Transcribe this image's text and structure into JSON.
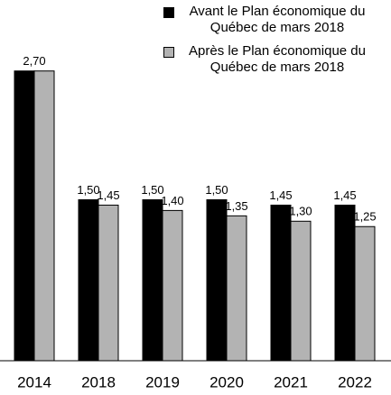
{
  "chart_data": {
    "type": "bar",
    "categories": [
      "2014",
      "2018",
      "2019",
      "2020",
      "2021",
      "2022"
    ],
    "series": [
      {
        "name": "Avant le Plan économique du Québec de mars 2018",
        "color": "#000000",
        "values": [
          2.7,
          1.5,
          1.5,
          1.5,
          1.45,
          1.45
        ],
        "value_labels": [
          "2,70",
          "1,50",
          "1,50",
          "1,50",
          "1,45",
          "1,45"
        ]
      },
      {
        "name": "Après le Plan économique du Québec de mars 2018",
        "color": "#b3b3b3",
        "values": [
          2.7,
          1.45,
          1.4,
          1.35,
          1.3,
          1.25
        ],
        "value_labels": [
          null,
          "1,45",
          "1,40",
          "1,35",
          "1,30",
          "1,25"
        ]
      }
    ],
    "ylim": [
      0,
      3.0
    ],
    "legend": "top-right"
  }
}
